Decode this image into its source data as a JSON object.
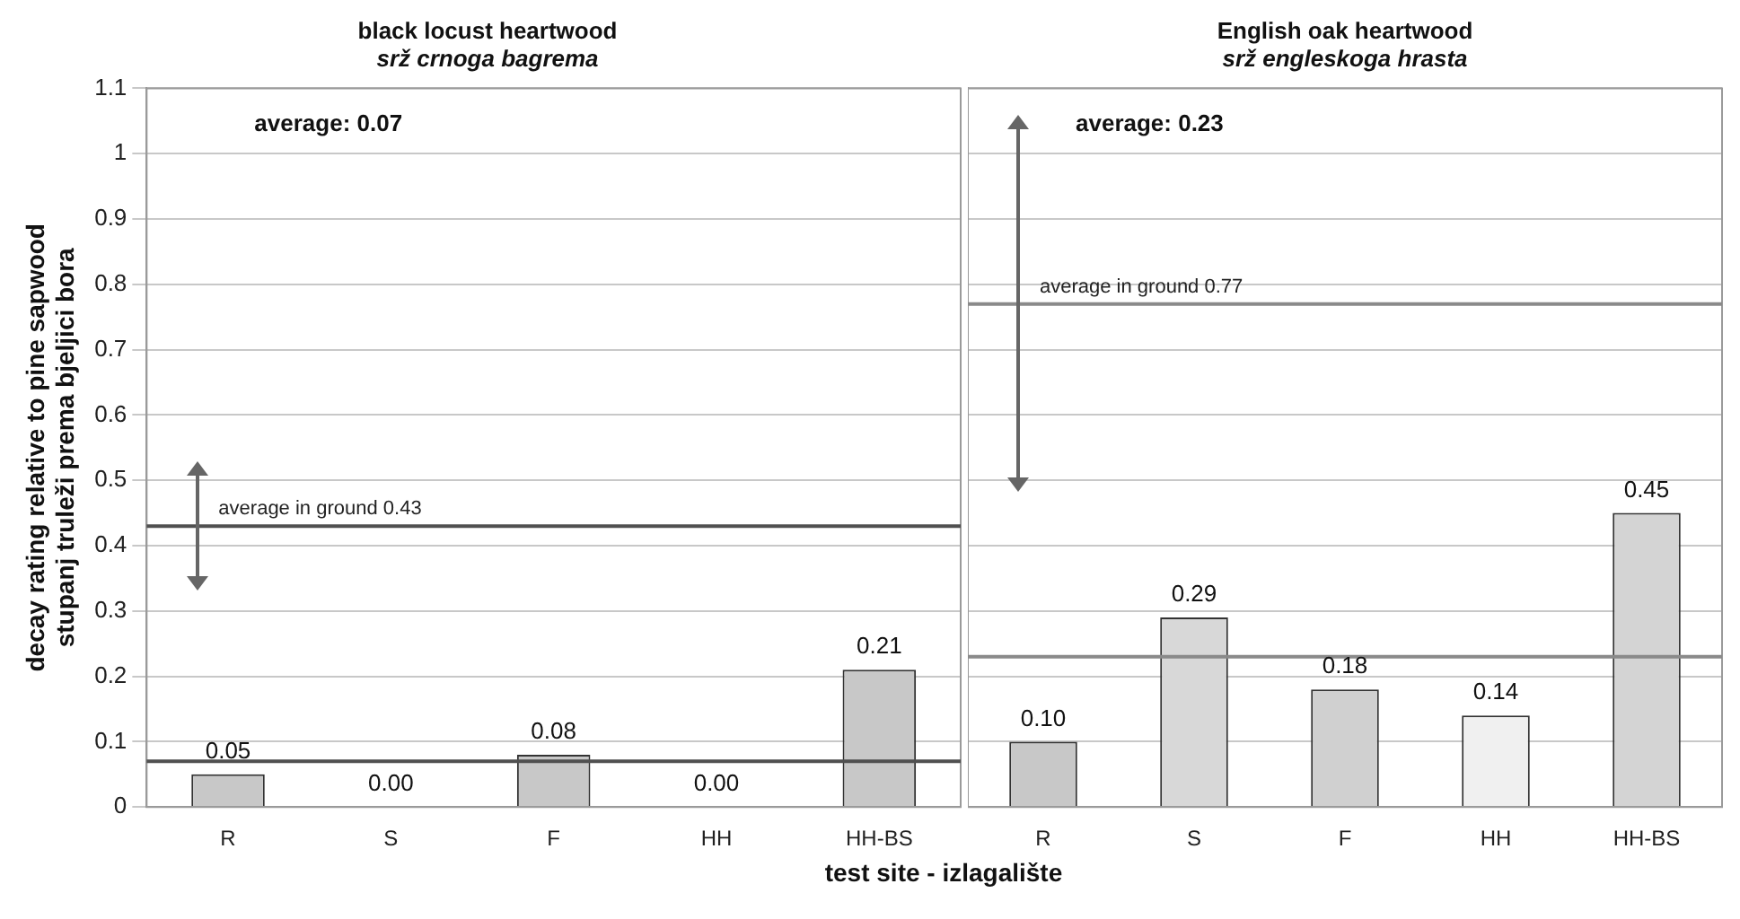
{
  "chart_data": [
    {
      "type": "bar",
      "title": "black locust heartwood",
      "subtitle": "srž crnoga bagrema",
      "ylabel": "decay rating relative to pine sapwood\nstupanj truleži prema bjeljici bora",
      "xlabel": "test site - izlagalište",
      "categories": [
        "R",
        "S",
        "F",
        "HH",
        "HH-BS"
      ],
      "values": [
        0.05,
        0,
        0.08,
        0,
        0.21
      ],
      "value_labels": [
        "0.05",
        "0.00",
        "0.08",
        "0.00",
        "0.21"
      ],
      "colors": [
        "#c8c8c8",
        "#c8c8c8",
        "#c8c8c8",
        "#c8c8c8",
        "#c8c8c8"
      ],
      "ylim": [
        0,
        1.1
      ],
      "yticks": [
        0,
        0.1,
        0.2,
        0.3,
        0.4,
        0.5,
        0.6,
        0.7,
        0.8,
        0.9,
        1,
        1.1
      ],
      "grid": "y",
      "annotations": [
        "average: 0.07"
      ],
      "ref_lines": [
        {
          "axis": "y",
          "value": 0.07,
          "color": "#505050"
        },
        {
          "axis": "y",
          "value": 0.43,
          "label": "average in ground 0.43",
          "color": "#505050"
        }
      ]
    },
    {
      "type": "bar",
      "title": "English oak heartwood",
      "subtitle": "srž engleskoga hrasta",
      "categories": [
        "R",
        "S",
        "F",
        "HH",
        "HH-BS"
      ],
      "values": [
        0.1,
        0.29,
        0.18,
        0.14,
        0.45
      ],
      "value_labels": [
        "0.10",
        "0.29",
        "0.18",
        "0.14",
        "0.45"
      ],
      "colors": [
        "#c8c8c8",
        "#d8d8d8",
        "#d0d0d0",
        "#f0f0f0",
        "#d4d4d4"
      ],
      "ylim": [
        0,
        1.1
      ],
      "yticks": [
        0,
        0.1,
        0.2,
        0.3,
        0.4,
        0.5,
        0.6,
        0.7,
        0.8,
        0.9,
        1,
        1.1
      ],
      "grid": "y",
      "tick_labels": "x",
      "annotations": [
        "average: 0.23"
      ],
      "ref_lines": [
        {
          "axis": "y",
          "value": 0.23,
          "color": "#8a8a8a"
        },
        {
          "axis": "y",
          "value": 0.77,
          "label": "average in ground 0.77",
          "color": "#8a8a8a"
        }
      ]
    }
  ]
}
